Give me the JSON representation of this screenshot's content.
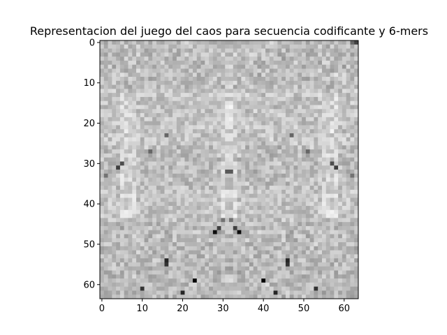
{
  "chart_data": {
    "type": "heatmap",
    "title": "Representacion del juego del caos para secuencia codificante y 6-mers",
    "xlabel": "",
    "ylabel": "",
    "rows": 64,
    "cols": 64,
    "xlim": [
      -0.5,
      63.5
    ],
    "ylim": [
      63.5,
      -0.5
    ],
    "x_ticks": [
      0,
      10,
      20,
      30,
      40,
      50,
      60
    ],
    "y_ticks": [
      0,
      10,
      20,
      30,
      40,
      50,
      60
    ],
    "x_tick_labels": [
      "0",
      "10",
      "20",
      "30",
      "40",
      "50",
      "60"
    ],
    "y_tick_labels": [
      "0",
      "10",
      "20",
      "30",
      "40",
      "50",
      "60"
    ],
    "colormap": "gray_r",
    "value_range": [
      0,
      1
    ],
    "pattern": "approximately mirror-symmetric left-right; darker cells near rows 28-35 and 45-63",
    "dark_cells": [
      {
        "row": 0,
        "col": 63,
        "value": 0.75
      },
      {
        "row": 0,
        "col": 62,
        "value": 0.6
      },
      {
        "row": 31,
        "col": 4,
        "value": 0.75
      },
      {
        "row": 30,
        "col": 5,
        "value": 0.7
      },
      {
        "row": 31,
        "col": 58,
        "value": 0.75
      },
      {
        "row": 30,
        "col": 57,
        "value": 0.7
      },
      {
        "row": 32,
        "col": 31,
        "value": 0.65
      },
      {
        "row": 32,
        "col": 32,
        "value": 0.65
      },
      {
        "row": 47,
        "col": 28,
        "value": 0.95
      },
      {
        "row": 47,
        "col": 34,
        "value": 0.95
      },
      {
        "row": 46,
        "col": 29,
        "value": 0.75
      },
      {
        "row": 46,
        "col": 33,
        "value": 0.75
      },
      {
        "row": 44,
        "col": 30,
        "value": 0.55
      },
      {
        "row": 44,
        "col": 32,
        "value": 0.55
      },
      {
        "row": 54,
        "col": 16,
        "value": 0.85
      },
      {
        "row": 55,
        "col": 16,
        "value": 0.8
      },
      {
        "row": 54,
        "col": 46,
        "value": 0.85
      },
      {
        "row": 55,
        "col": 46,
        "value": 0.8
      },
      {
        "row": 59,
        "col": 23,
        "value": 0.98
      },
      {
        "row": 59,
        "col": 40,
        "value": 0.98
      },
      {
        "row": 61,
        "col": 10,
        "value": 0.8
      },
      {
        "row": 61,
        "col": 53,
        "value": 0.8
      },
      {
        "row": 62,
        "col": 20,
        "value": 0.85
      },
      {
        "row": 62,
        "col": 43,
        "value": 0.85
      },
      {
        "row": 27,
        "col": 12,
        "value": 0.6
      },
      {
        "row": 27,
        "col": 51,
        "value": 0.6
      },
      {
        "row": 23,
        "col": 16,
        "value": 0.6
      },
      {
        "row": 23,
        "col": 47,
        "value": 0.6
      },
      {
        "row": 33,
        "col": 62,
        "value": 0.55
      },
      {
        "row": 33,
        "col": 1,
        "value": 0.55
      }
    ]
  }
}
